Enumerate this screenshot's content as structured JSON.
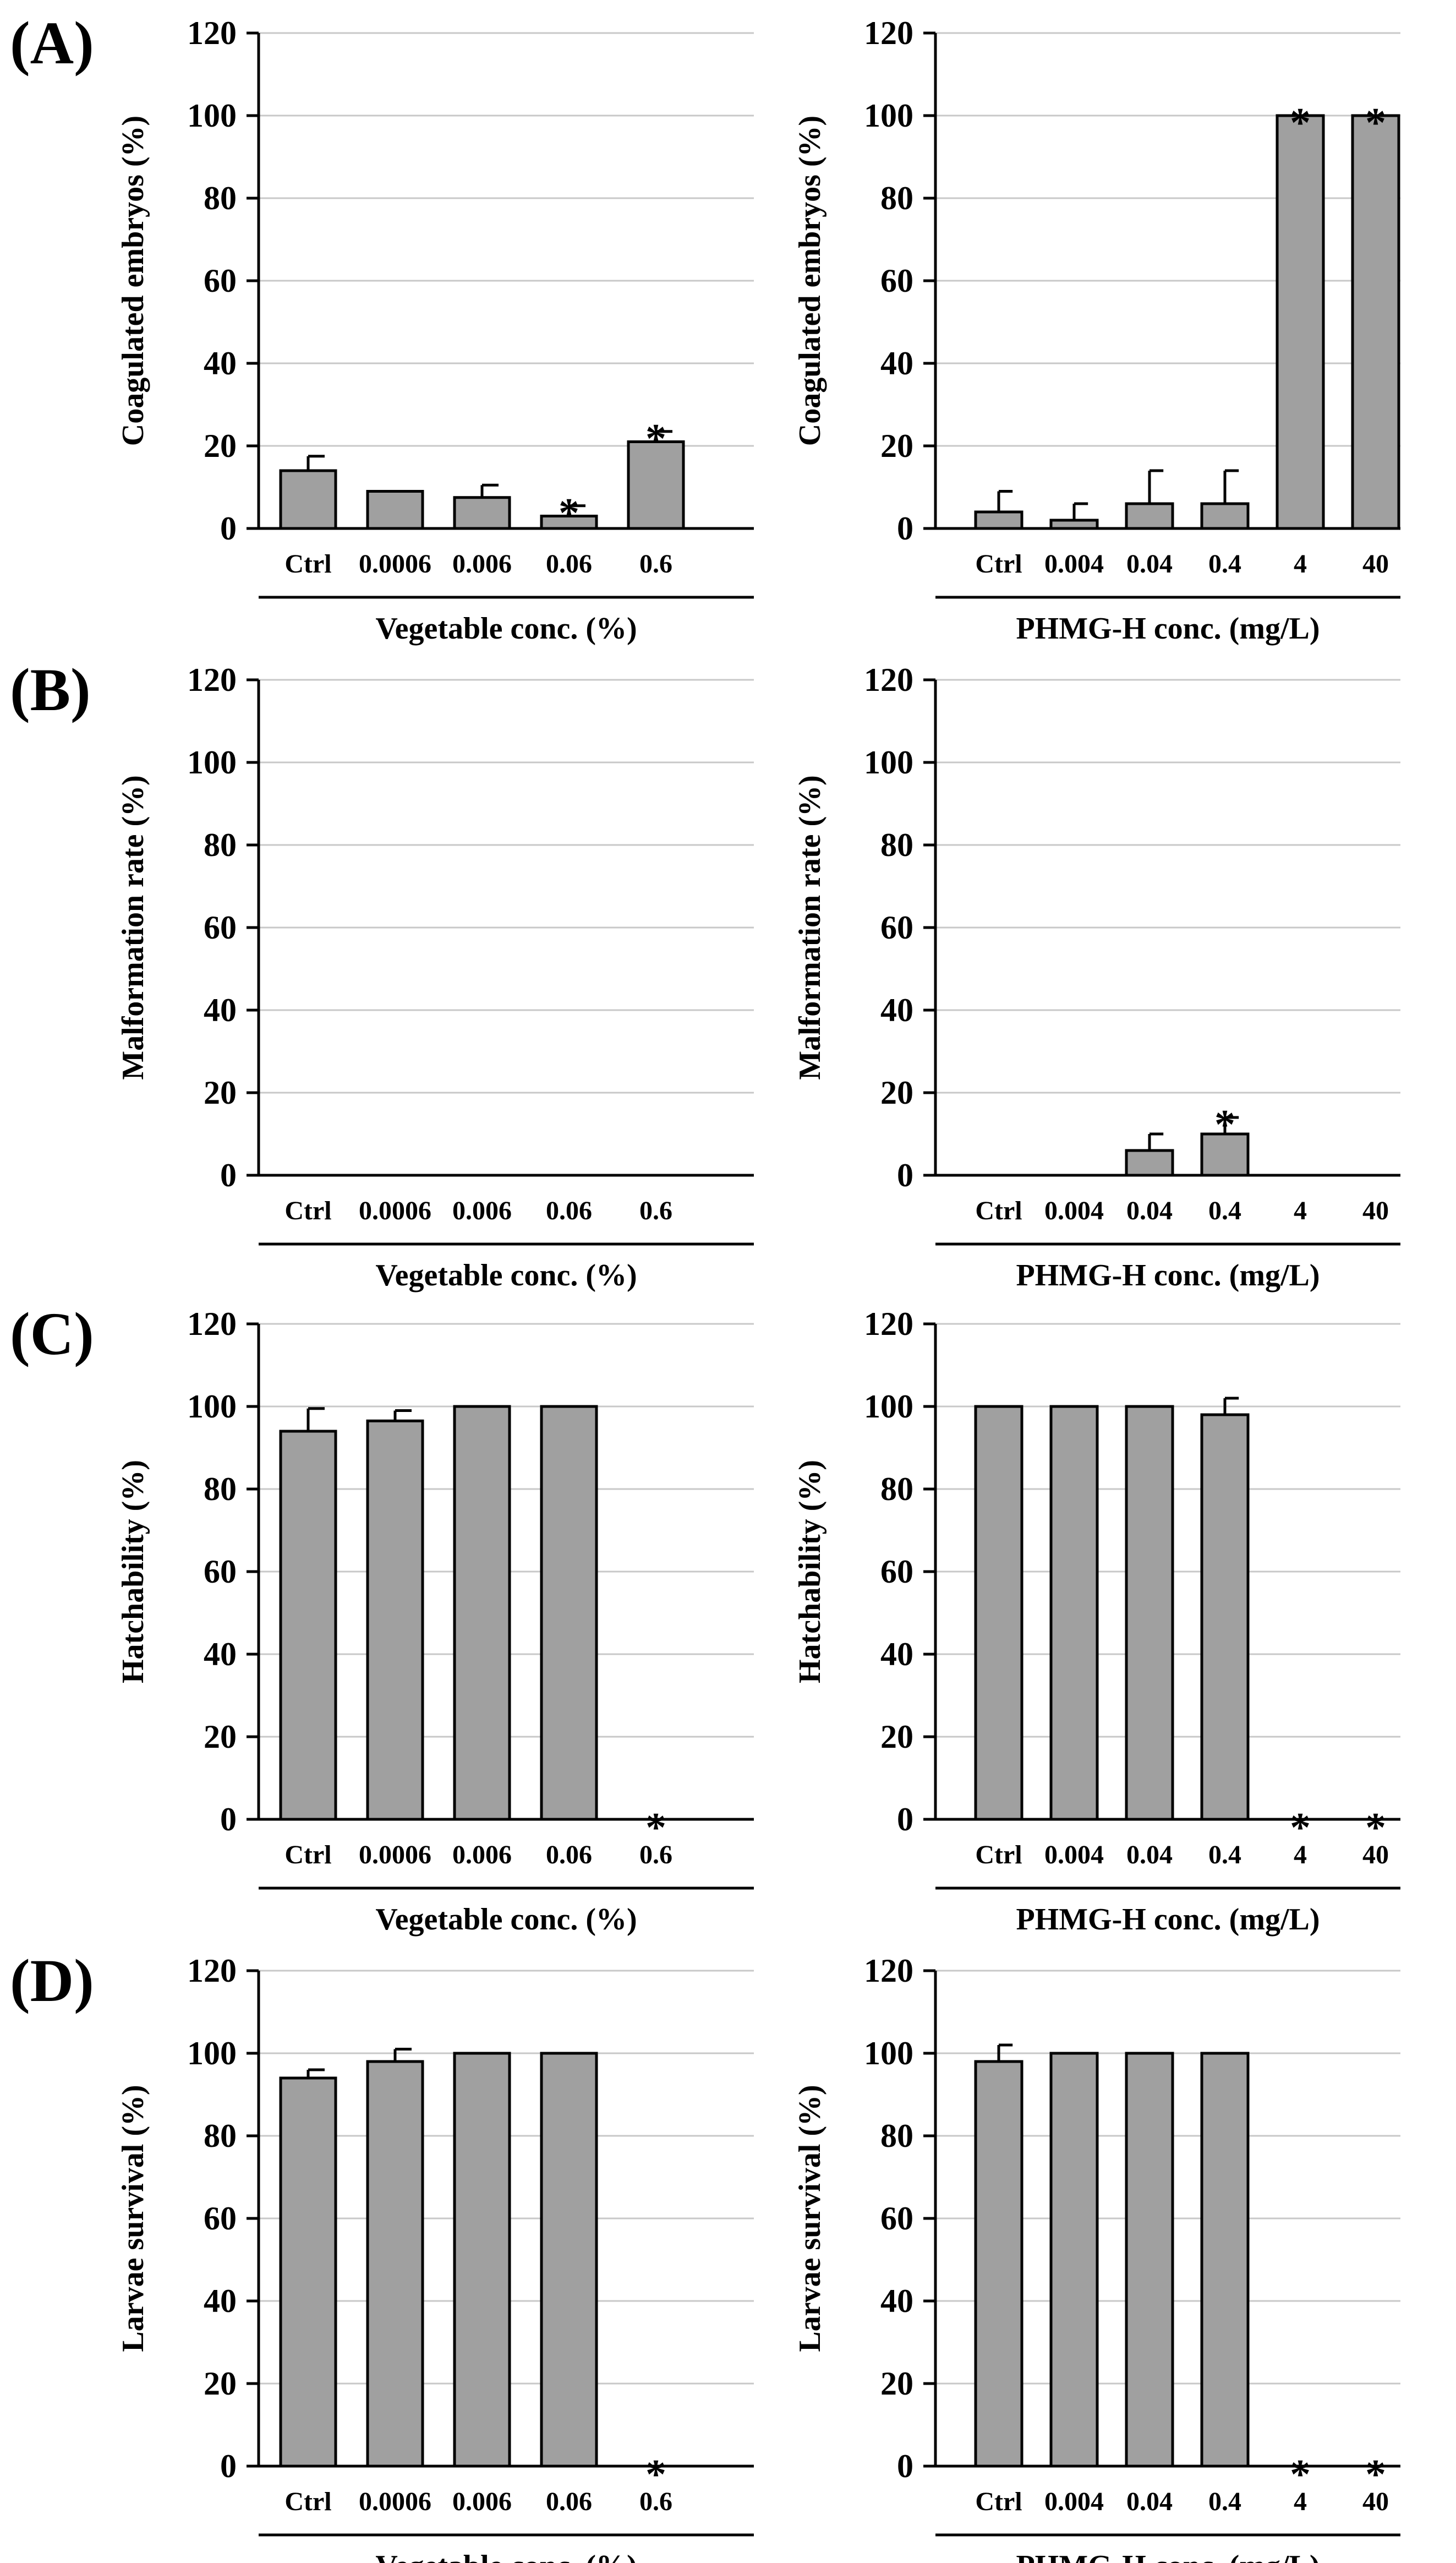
{
  "panel_labels": [
    "(A)",
    "(B)",
    "(C)",
    "(D)"
  ],
  "chart_data": [
    {
      "type": "bar",
      "panel": "(A)",
      "title": "",
      "ylabel": "Coagulated embryos (%)",
      "xlabel": "Vegetable conc. (%)",
      "ylim": [
        0,
        120
      ],
      "yticks": [
        0,
        20,
        40,
        60,
        80,
        100,
        120
      ],
      "grid": true,
      "categories": [
        "Ctrl",
        "0.0006",
        "0.006",
        "0.06",
        "0.6"
      ],
      "values": [
        14,
        9,
        7.5,
        3,
        21
      ],
      "errors": [
        3.5,
        0,
        3,
        2.5,
        2.5
      ],
      "significant": [
        false,
        false,
        false,
        true,
        true
      ],
      "sig_marker": "*"
    },
    {
      "type": "bar",
      "panel": "(A)",
      "title": "",
      "ylabel": "Coagulated embryos (%)",
      "xlabel": "PHMG-H conc. (mg/L)",
      "ylim": [
        0,
        120
      ],
      "yticks": [
        0,
        20,
        40,
        60,
        80,
        100,
        120
      ],
      "grid": true,
      "categories": [
        "Ctrl",
        "0.004",
        "0.04",
        "0.4",
        "4",
        "40"
      ],
      "values": [
        4,
        2,
        6,
        6,
        100,
        100
      ],
      "errors": [
        5,
        4,
        8,
        8,
        0,
        0
      ],
      "significant": [
        false,
        false,
        false,
        false,
        true,
        true
      ],
      "sig_marker": "*"
    },
    {
      "type": "bar",
      "panel": "(B)",
      "title": "",
      "ylabel": "Malformation rate (%)",
      "xlabel": "Vegetable conc. (%)",
      "ylim": [
        0,
        120
      ],
      "yticks": [
        0,
        20,
        40,
        60,
        80,
        100,
        120
      ],
      "grid": true,
      "categories": [
        "Ctrl",
        "0.0006",
        "0.006",
        "0.06",
        "0.6"
      ],
      "values": [
        0,
        0,
        0,
        0,
        0
      ],
      "errors": [
        0,
        0,
        0,
        0,
        0
      ],
      "significant": [
        false,
        false,
        false,
        false,
        false
      ],
      "sig_marker": "*"
    },
    {
      "type": "bar",
      "panel": "(B)",
      "title": "",
      "ylabel": "Malformation rate (%)",
      "xlabel": "PHMG-H conc. (mg/L)",
      "ylim": [
        0,
        120
      ],
      "yticks": [
        0,
        20,
        40,
        60,
        80,
        100,
        120
      ],
      "grid": true,
      "categories": [
        "Ctrl",
        "0.004",
        "0.04",
        "0.4",
        "4",
        "40"
      ],
      "values": [
        0,
        0,
        6,
        10,
        0,
        0
      ],
      "errors": [
        0,
        0,
        4,
        4,
        0,
        0
      ],
      "significant": [
        false,
        false,
        false,
        true,
        false,
        false
      ],
      "sig_marker": "*"
    },
    {
      "type": "bar",
      "panel": "(C)",
      "title": "",
      "ylabel": "Hatchability (%)",
      "xlabel": "Vegetable conc. (%)",
      "ylim": [
        0,
        120
      ],
      "yticks": [
        0,
        20,
        40,
        60,
        80,
        100,
        120
      ],
      "grid": true,
      "categories": [
        "Ctrl",
        "0.0006",
        "0.006",
        "0.06",
        "0.6"
      ],
      "values": [
        94,
        96.5,
        100,
        100,
        0
      ],
      "errors": [
        5.5,
        2.5,
        0,
        0,
        0
      ],
      "significant": [
        false,
        false,
        false,
        false,
        true
      ],
      "sig_marker": "*"
    },
    {
      "type": "bar",
      "panel": "(C)",
      "title": "",
      "ylabel": "Hatchability (%)",
      "xlabel": "PHMG-H conc. (mg/L)",
      "ylim": [
        0,
        120
      ],
      "yticks": [
        0,
        20,
        40,
        60,
        80,
        100,
        120
      ],
      "grid": true,
      "categories": [
        "Ctrl",
        "0.004",
        "0.04",
        "0.4",
        "4",
        "40"
      ],
      "values": [
        100,
        100,
        100,
        98,
        0,
        0
      ],
      "errors": [
        0,
        0,
        0,
        4,
        0,
        0
      ],
      "significant": [
        false,
        false,
        false,
        false,
        true,
        true
      ],
      "sig_marker": "*"
    },
    {
      "type": "bar",
      "panel": "(D)",
      "title": "",
      "ylabel": "Larvae survival (%)",
      "xlabel": "Vegetable conc. (%)",
      "ylim": [
        0,
        120
      ],
      "yticks": [
        0,
        20,
        40,
        60,
        80,
        100,
        120
      ],
      "grid": true,
      "categories": [
        "Ctrl",
        "0.0006",
        "0.006",
        "0.06",
        "0.6"
      ],
      "values": [
        94,
        98,
        100,
        100,
        0
      ],
      "errors": [
        2,
        3,
        0,
        0,
        0
      ],
      "significant": [
        false,
        false,
        false,
        false,
        true
      ],
      "sig_marker": "*"
    },
    {
      "type": "bar",
      "panel": "(D)",
      "title": "",
      "ylabel": "Larvae survival (%)",
      "xlabel": "PHMG-H conc. (mg/L)",
      "ylim": [
        0,
        120
      ],
      "yticks": [
        0,
        20,
        40,
        60,
        80,
        100,
        120
      ],
      "grid": true,
      "categories": [
        "Ctrl",
        "0.004",
        "0.04",
        "0.4",
        "4",
        "40"
      ],
      "values": [
        98,
        100,
        100,
        100,
        0,
        0
      ],
      "errors": [
        4,
        0,
        0,
        0,
        0,
        0
      ],
      "significant": [
        false,
        false,
        false,
        false,
        true,
        true
      ],
      "sig_marker": "*"
    }
  ]
}
